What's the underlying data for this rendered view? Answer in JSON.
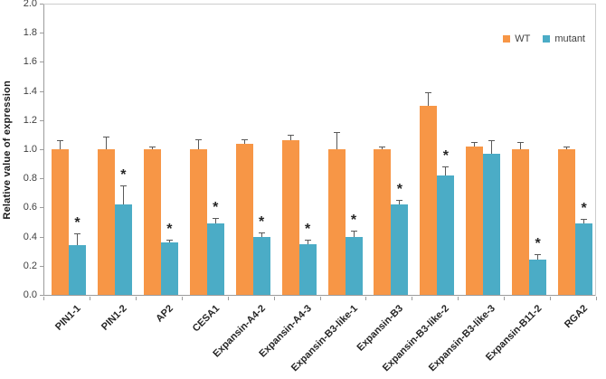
{
  "chart_data": {
    "type": "bar",
    "title": "",
    "ylabel": "Relative value of expression",
    "xlabel": "",
    "ylim": [
      0.0,
      2.0
    ],
    "ytick_step": 0.2,
    "yticks": [
      "0.0",
      "0.2",
      "0.4",
      "0.6",
      "0.8",
      "1.0",
      "1.2",
      "1.4",
      "1.6",
      "1.8",
      "2.0"
    ],
    "grid": false,
    "legend_position": "top-right",
    "significance_marker": "*",
    "colors": {
      "wt": "#F79646",
      "mutant": "#4BACC6",
      "error_bar": "#595959",
      "axis": "#9c9c9c",
      "plot_border": "#cccccc",
      "text": "#262626"
    },
    "categories": [
      "PIN1-1",
      "PIN1-2",
      "AP2",
      "CESA1",
      "Expansin-A4-2",
      "Expansin-A4-3",
      "Expansin-B3-like-1",
      "Expansin-B3",
      "Expansin-B3-like-2",
      "Expansin-B3-like-3",
      "Expansin-B11-2",
      "RGA2"
    ],
    "series": [
      {
        "name": "WT",
        "color": "#F79646",
        "values": [
          1.0,
          1.0,
          1.0,
          1.0,
          1.04,
          1.06,
          1.0,
          1.0,
          1.3,
          1.02,
          1.0,
          1.0
        ],
        "errors": [
          0.06,
          0.09,
          0.02,
          0.07,
          0.03,
          0.04,
          0.12,
          0.02,
          0.09,
          0.03,
          0.05,
          0.02
        ],
        "significant": [
          false,
          false,
          false,
          false,
          false,
          false,
          false,
          false,
          false,
          false,
          false,
          false
        ]
      },
      {
        "name": "mutant",
        "color": "#4BACC6",
        "values": [
          0.34,
          0.62,
          0.36,
          0.49,
          0.4,
          0.35,
          0.4,
          0.62,
          0.82,
          0.97,
          0.24,
          0.49
        ],
        "errors": [
          0.08,
          0.13,
          0.02,
          0.04,
          0.03,
          0.03,
          0.04,
          0.03,
          0.06,
          0.09,
          0.04,
          0.03
        ],
        "significant": [
          true,
          true,
          true,
          true,
          true,
          true,
          true,
          true,
          true,
          false,
          true,
          true
        ]
      }
    ]
  }
}
